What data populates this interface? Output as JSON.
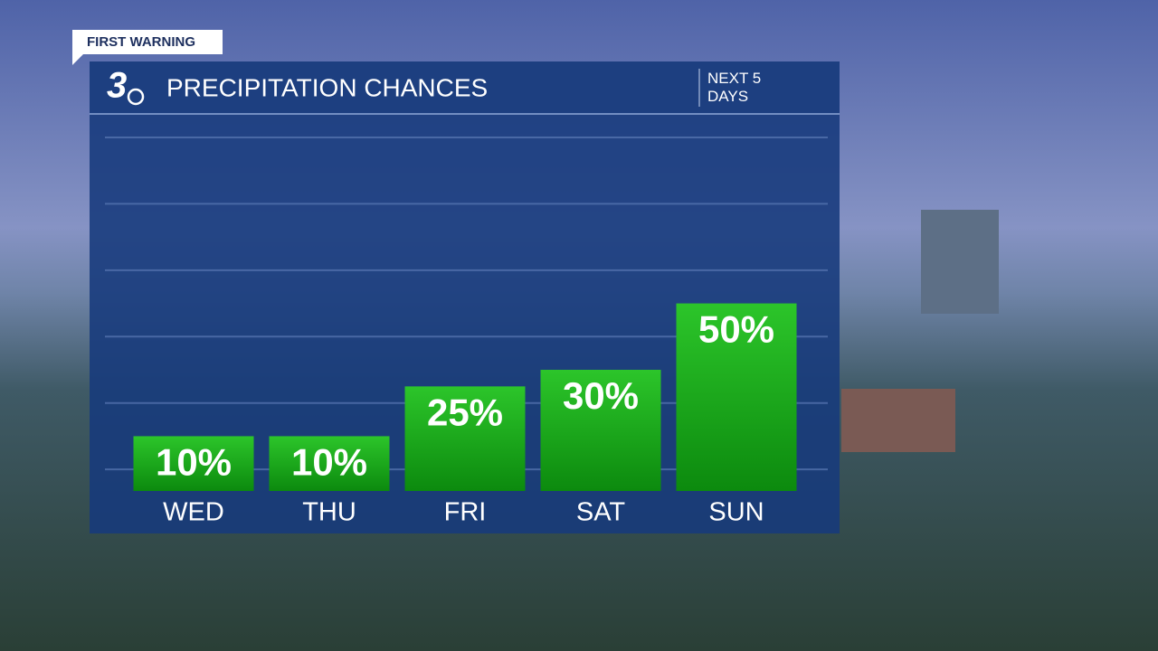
{
  "banner": "FIRST WARNING",
  "logo": "3",
  "chart_data": {
    "type": "bar",
    "title": "PRECIPITATION CHANCES",
    "subtitle": "NEXT 5 DAYS",
    "categories": [
      "WED",
      "THU",
      "FRI",
      "SAT",
      "SUN"
    ],
    "values": [
      10,
      10,
      25,
      30,
      50
    ],
    "value_labels": [
      "10%",
      "10%",
      "25%",
      "30%",
      "50%"
    ],
    "color": "#1fae1c",
    "ylim": [
      -6.5,
      100
    ],
    "yticks": [
      0,
      20,
      40,
      60,
      80,
      100
    ],
    "grid": true
  }
}
